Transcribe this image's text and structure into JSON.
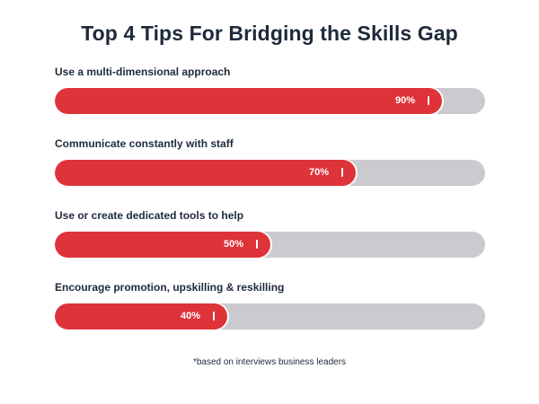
{
  "chart_data": {
    "type": "bar",
    "orientation": "horizontal",
    "title": "Top 4 Tips For Bridging the Skills Gap",
    "categories": [
      "Use a multi-dimensional approach",
      "Communicate constantly with staff",
      "Use or create dedicated tools to help",
      "Encourage promotion, upskilling & reskilling"
    ],
    "values": [
      90,
      70,
      50,
      40
    ],
    "value_labels": [
      "90%",
      "70%",
      "50%",
      "40%"
    ],
    "xlim": [
      0,
      100
    ],
    "grid": false,
    "legend": "none",
    "footnote": "*based on interviews business leaders"
  },
  "colors": {
    "bar_fill": "#de3339",
    "track": "#cacacf",
    "text": "#1e2a3b"
  }
}
